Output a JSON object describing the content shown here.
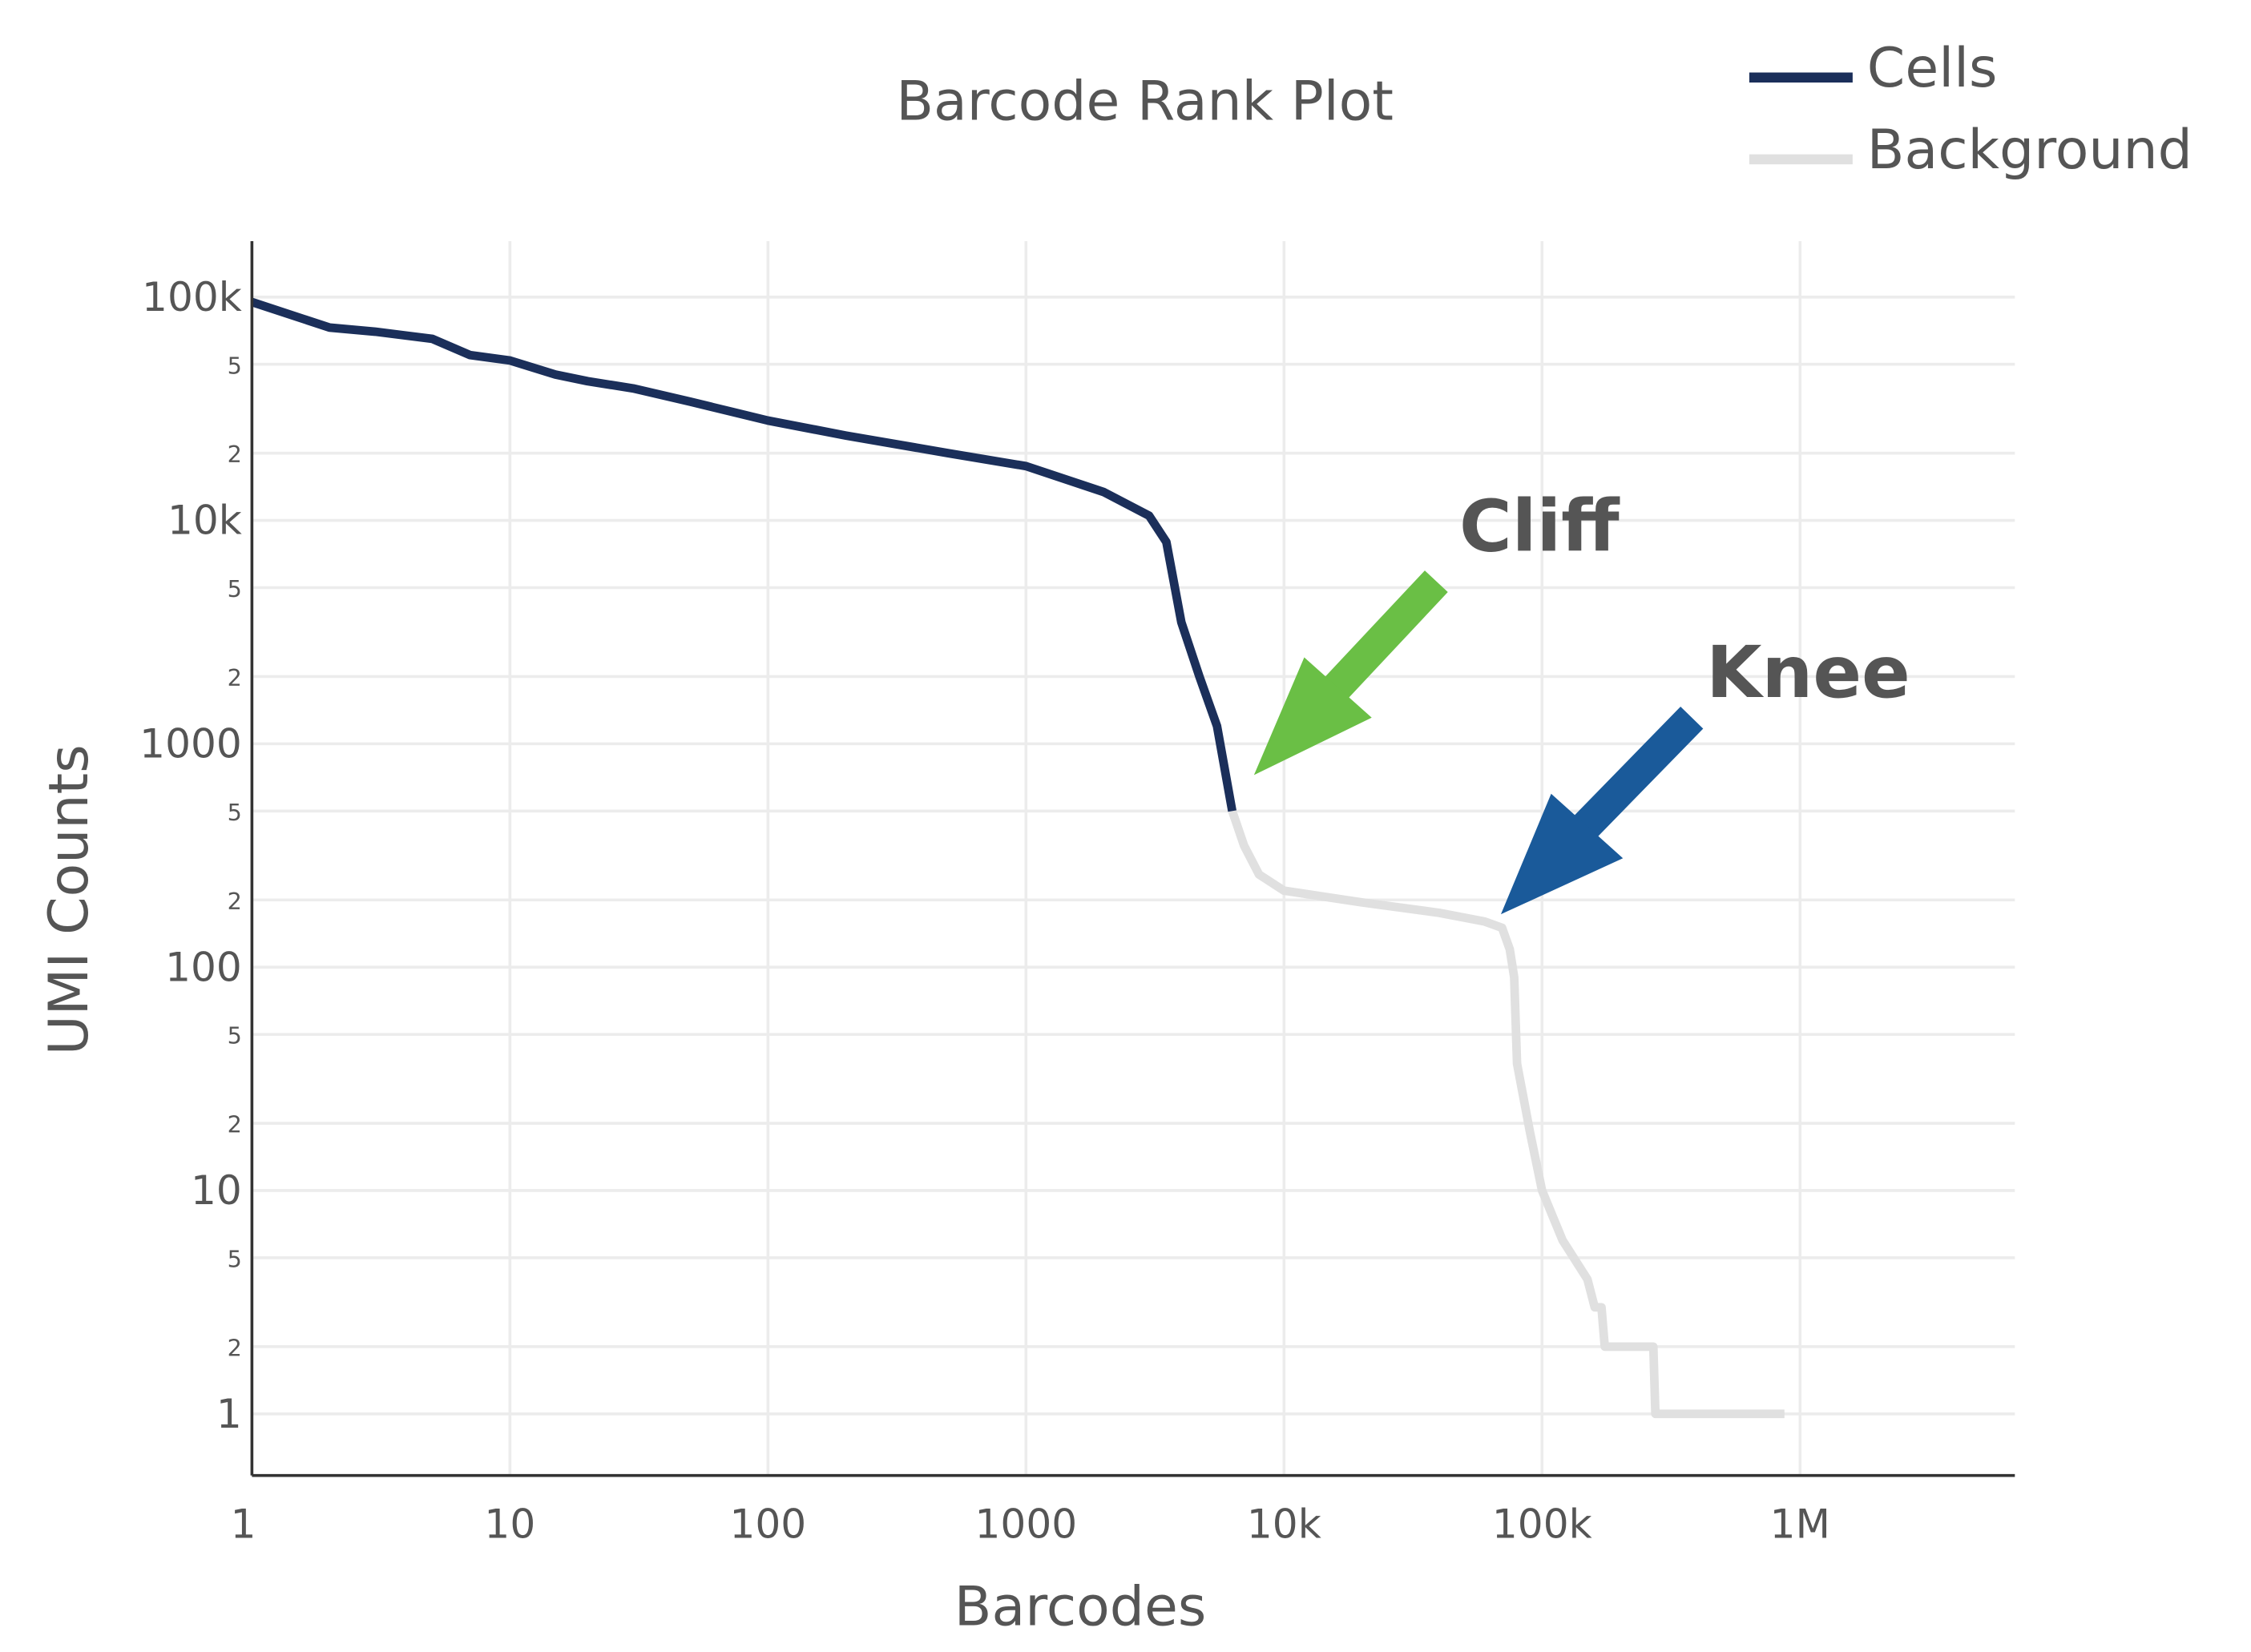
{
  "chart_data": {
    "type": "line",
    "title": "Barcode Rank Plot",
    "x_label": "Barcodes",
    "y_label": "UMI Counts",
    "log_x": true,
    "log_y": true,
    "grid": true,
    "legend_position": "top-right",
    "xlim": [
      1,
      6800000
    ],
    "ylim": [
      0.53,
      178000
    ],
    "xticks": [
      1,
      10,
      100,
      1000,
      {
        "value": 10000,
        "label": "10k"
      },
      {
        "value": 100000,
        "label": "100k"
      },
      {
        "value": 1000000,
        "label": "1M"
      }
    ],
    "yticks": [
      1,
      {
        "value": 2,
        "label": "2"
      },
      5,
      10,
      {
        "value": 20,
        "label": "2"
      },
      {
        "value": 50,
        "label": "5"
      },
      100,
      {
        "value": 200,
        "label": "2"
      },
      {
        "value": 500,
        "label": "5"
      },
      1000,
      {
        "value": 2000,
        "label": "2"
      },
      {
        "value": 5000,
        "label": "5"
      },
      {
        "value": 10000,
        "label": "10k"
      },
      {
        "value": 20000,
        "label": "2"
      },
      {
        "value": 50000,
        "label": "5"
      },
      {
        "value": 100000,
        "label": "100k"
      }
    ],
    "series": [
      {
        "name": "Cells",
        "color": "#1b2f5a",
        "x": [
          1,
          2,
          3,
          5,
          7,
          10,
          15,
          20,
          30,
          50,
          100,
          200,
          500,
          1000,
          2000,
          3000,
          3500,
          4000,
          4700,
          5500,
          6300
        ],
        "values": [
          95000,
          73000,
          70000,
          65000,
          55000,
          52000,
          45000,
          42000,
          39000,
          34000,
          28000,
          24000,
          20000,
          17500,
          13400,
          10500,
          8000,
          3500,
          2000,
          1200,
          500
        ]
      },
      {
        "name": "Background",
        "color": "#e0e0e0",
        "x": [
          6300,
          7000,
          8000,
          10000,
          20000,
          40000,
          60000,
          70000,
          75000,
          78000,
          80000,
          90000,
          100000,
          120000,
          150000,
          160000,
          170000,
          175000,
          270000,
          275000,
          870000
        ],
        "values": [
          500,
          350,
          260,
          220,
          195,
          175,
          160,
          150,
          120,
          90,
          37,
          18,
          10,
          6,
          4,
          3,
          3,
          2,
          2,
          1,
          1
        ]
      }
    ],
    "annotations": [
      {
        "text": "Cliff",
        "color": "#6abf45"
      },
      {
        "text": "Knee",
        "color": "#1a5a9a"
      }
    ]
  }
}
